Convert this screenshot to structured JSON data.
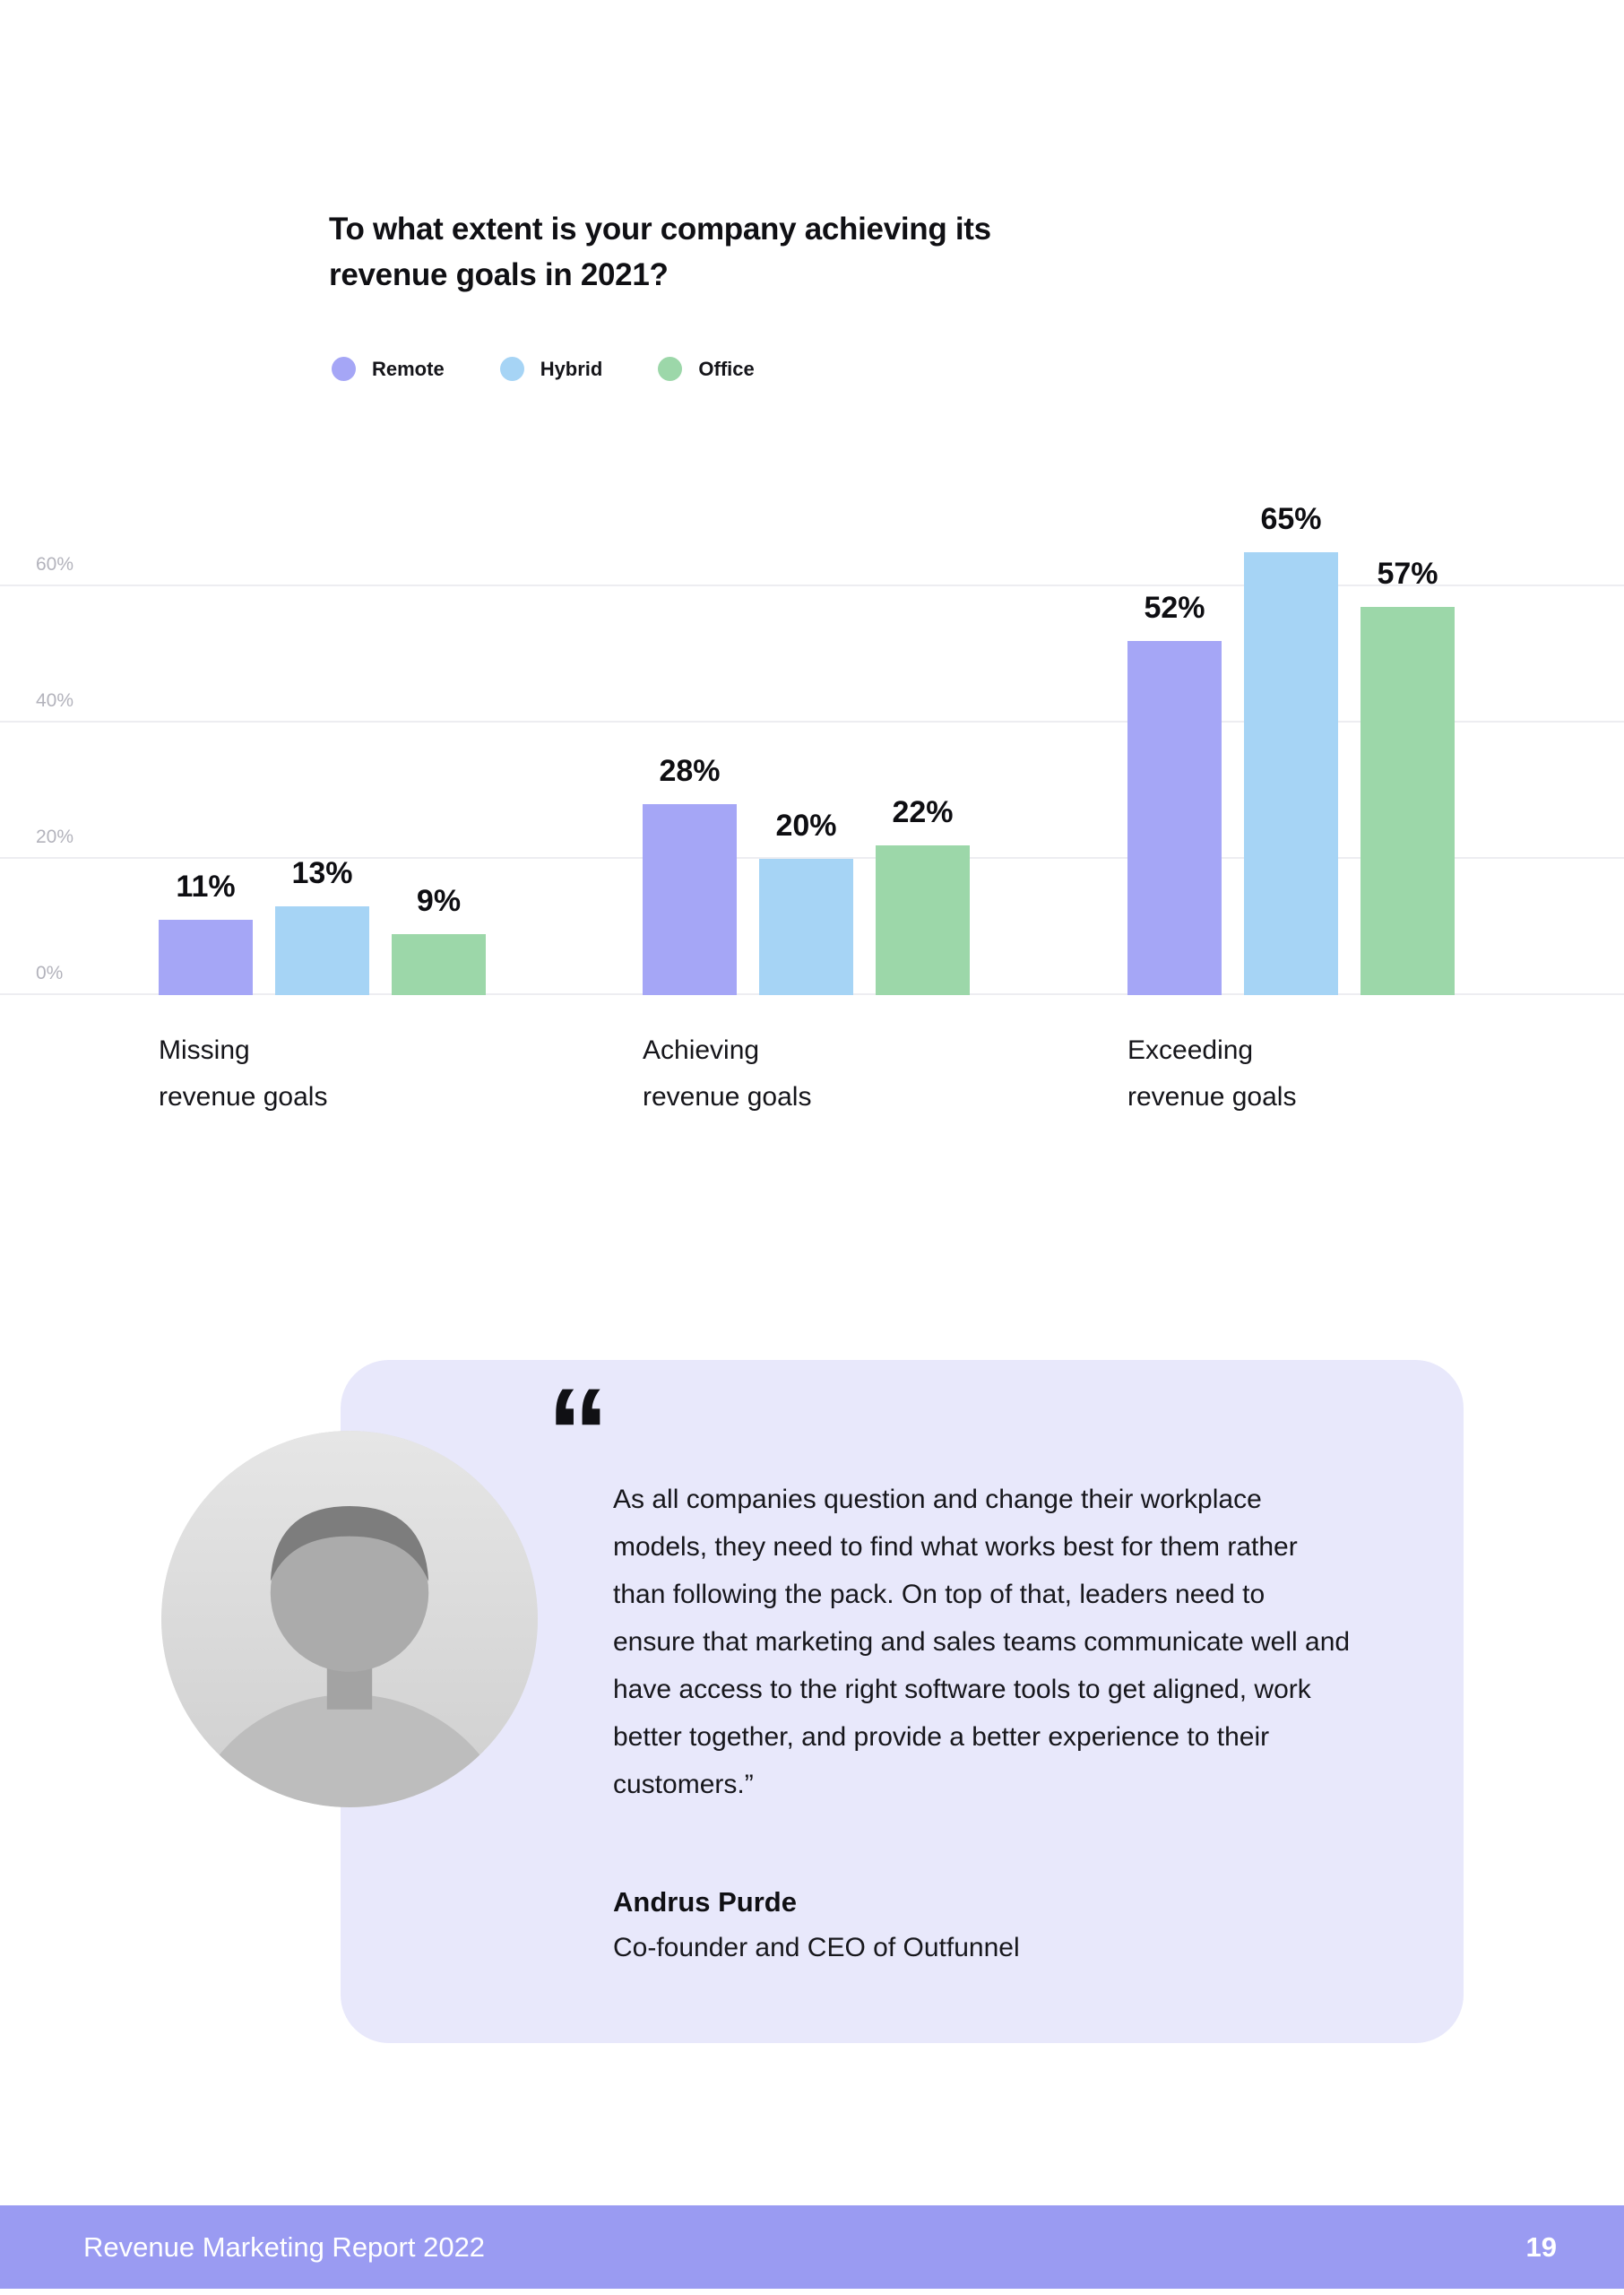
{
  "chart": {
    "title_lines": [
      "To what extent is your company achieving its",
      "revenue goals in 2021?"
    ],
    "category_lines": [
      [
        "Missing",
        "revenue goals"
      ],
      [
        "Achieving",
        "revenue goals"
      ],
      [
        "Exceeding",
        "revenue goals"
      ]
    ]
  },
  "chart_data": {
    "type": "bar",
    "title": "To what extent is your company achieving its revenue goals in 2021?",
    "categories": [
      "Missing revenue goals",
      "Achieving revenue goals",
      "Exceeding revenue goals"
    ],
    "series": [
      {
        "name": "Remote",
        "color": "#a5a6f6",
        "values": [
          11,
          28,
          52
        ]
      },
      {
        "name": "Hybrid",
        "color": "#a6d4f5",
        "values": [
          13,
          20,
          65
        ]
      },
      {
        "name": "Office",
        "color": "#9cd7a9",
        "values": [
          9,
          22,
          57
        ]
      }
    ],
    "value_labels": [
      [
        "11%",
        "13%",
        "9%"
      ],
      [
        "28%",
        "20%",
        "22%"
      ],
      [
        "52%",
        "65%",
        "57%"
      ]
    ],
    "y_ticks": [
      "0%",
      "20%",
      "40%",
      "60%"
    ],
    "ylim": [
      0,
      65
    ],
    "ylabel": "",
    "xlabel": "",
    "grid": true,
    "legend_position": "top-left"
  },
  "quote": {
    "mark": "“",
    "text": "As all companies question and change their workplace models, they need to find what works best for them rather than following the pack. On top of that, leaders need to ensure that marketing and sales teams communicate well and have access to the right software tools to get aligned, work better together, and provide a better experience to their customers.”",
    "author": "Andrus Purde",
    "role": "Co-founder and CEO of Outfunnel"
  },
  "page": {
    "footer": {
      "title": "Revenue Marketing Report 2022",
      "page_number": "19"
    }
  }
}
